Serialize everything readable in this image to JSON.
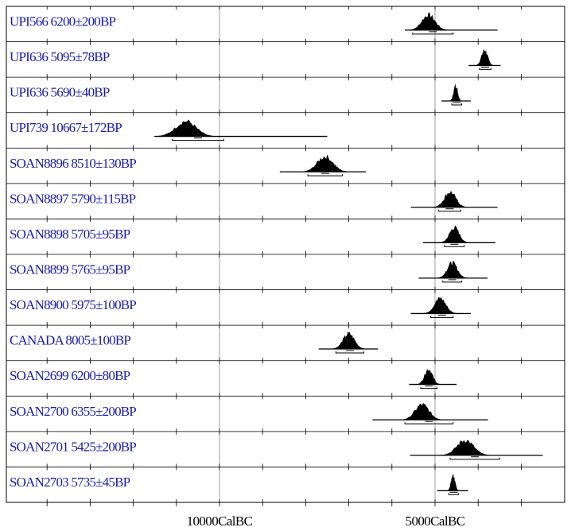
{
  "chart_data": {
    "type": "probability-distribution",
    "x_unit": "CalBC",
    "xlim": [
      15000,
      2000
    ],
    "ticks": [
      {
        "value": 10000,
        "label": "10000CalBC"
      },
      {
        "value": 5000,
        "label": "5000CalBC"
      }
    ],
    "minor_tick_step": 1000,
    "grid": "vertical lines at labeled ticks",
    "label_color": "#1a1aaa",
    "fill_color": "#000000",
    "samples": [
      {
        "name": "UPI566",
        "date": "6200±200BP",
        "peak": 5150,
        "spread": 150,
        "range": [
          5700,
          3550
        ],
        "bar": [
          5520,
          4580
        ]
      },
      {
        "name": "UPI636",
        "date": "5095±78BP",
        "peak": 3850,
        "spread": 70,
        "range": [
          4220,
          3480
        ],
        "bar": [
          3970,
          3700
        ]
      },
      {
        "name": "UPI636",
        "date": "5690±40BP",
        "peak": 4520,
        "spread": 45,
        "range": [
          4850,
          4170
        ],
        "bar": [
          4610,
          4380
        ]
      },
      {
        "name": "UPI739",
        "date": "10667±172BP",
        "peak": 10780,
        "spread": 230,
        "range": [
          11500,
          7500
        ],
        "bar": [
          11100,
          9900
        ]
      },
      {
        "name": "SOAN8896",
        "date": "8510±130BP",
        "peak": 7550,
        "spread": 180,
        "range": [
          8600,
          6600
        ],
        "bar": [
          7950,
          7150
        ]
      },
      {
        "name": "SOAN8897",
        "date": "5790±115BP",
        "peak": 4650,
        "spread": 130,
        "range": [
          5560,
          3550
        ],
        "bar": [
          4920,
          4400
        ]
      },
      {
        "name": "SOAN8898",
        "date": "5705±95BP",
        "peak": 4550,
        "spread": 110,
        "range": [
          5280,
          3600
        ],
        "bar": [
          4780,
          4320
        ]
      },
      {
        "name": "SOAN8899",
        "date": "5765±95BP",
        "peak": 4600,
        "spread": 115,
        "range": [
          5380,
          3780
        ],
        "bar": [
          4820,
          4380
        ]
      },
      {
        "name": "SOAN8900",
        "date": "5975±100BP",
        "peak": 4880,
        "spread": 130,
        "range": [
          5560,
          4170
        ],
        "bar": [
          5100,
          4580
        ]
      },
      {
        "name": "CANADA",
        "date": "8005±100BP",
        "peak": 7000,
        "spread": 130,
        "range": [
          7700,
          6320
        ],
        "bar": [
          7300,
          6650
        ]
      },
      {
        "name": "SOAN2699",
        "date": "6200±80BP",
        "peak": 5150,
        "spread": 90,
        "range": [
          5600,
          4500
        ],
        "bar": [
          5330,
          4950
        ]
      },
      {
        "name": "SOAN2700",
        "date": "6355±200BP",
        "peak": 5300,
        "spread": 160,
        "range": [
          6450,
          3770
        ],
        "bar": [
          5700,
          4580
        ]
      },
      {
        "name": "SOAN2701",
        "date": "5425±200BP",
        "peak": 4300,
        "spread": 190,
        "range": [
          5580,
          2500
        ],
        "bar": [
          4650,
          3500
        ]
      },
      {
        "name": "SOAN2703",
        "date": "5735±45BP",
        "peak": 4580,
        "spread": 45,
        "range": [
          4950,
          4230
        ],
        "bar": [
          4680,
          4450
        ]
      }
    ]
  }
}
